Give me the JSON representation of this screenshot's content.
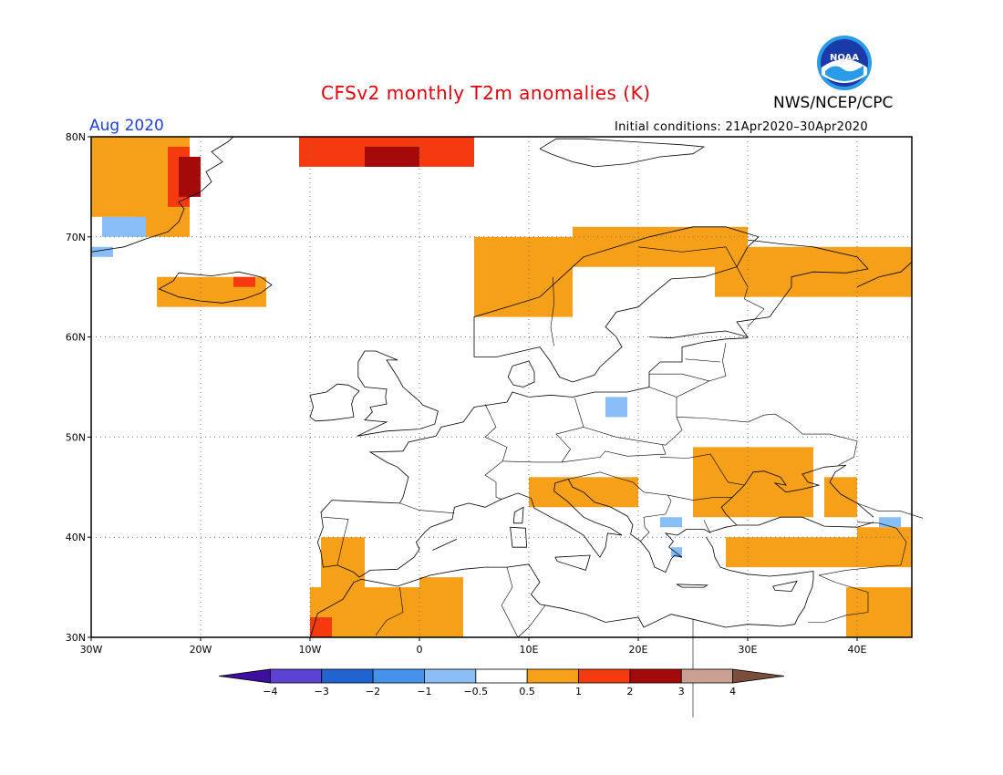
{
  "header": {
    "title": "CFSv2 monthly T2m anomalies (K)",
    "agency": "NWS/NCEP/CPC",
    "month": "Aug 2020",
    "initial_conditions": "Initial conditions: 21Apr2020–30Apr2020",
    "logo_text": "NOAA"
  },
  "map": {
    "lon_range": [
      -30,
      45
    ],
    "lat_range": [
      30,
      80
    ],
    "lat_ticks": [
      {
        "value": 80,
        "label": "80N"
      },
      {
        "value": 70,
        "label": "70N"
      },
      {
        "value": 60,
        "label": "60N"
      },
      {
        "value": 50,
        "label": "50N"
      },
      {
        "value": 40,
        "label": "40N"
      },
      {
        "value": 30,
        "label": "30N"
      }
    ],
    "lon_ticks": [
      {
        "value": -30,
        "label": "30W"
      },
      {
        "value": -20,
        "label": "20W"
      },
      {
        "value": -10,
        "label": "10W"
      },
      {
        "value": 0,
        "label": "0"
      },
      {
        "value": 10,
        "label": "10E"
      },
      {
        "value": 20,
        "label": "20E"
      },
      {
        "value": 30,
        "label": "30E"
      },
      {
        "value": 40,
        "label": "40E"
      }
    ],
    "gridlines": "dotted",
    "anomaly_regions": [
      {
        "category": "0.5-1",
        "lon": [
          -30,
          -25
        ],
        "lat": [
          72,
          80
        ]
      },
      {
        "category": "0.5-1",
        "lon": [
          -26,
          -21
        ],
        "lat": [
          70,
          80
        ]
      },
      {
        "category": "1-2",
        "lon": [
          -23,
          -21
        ],
        "lat": [
          73,
          79
        ]
      },
      {
        "category": "2-3",
        "lon": [
          -22,
          -20
        ],
        "lat": [
          74,
          78
        ]
      },
      {
        "category": "-1--0.5",
        "lon": [
          -29,
          -25
        ],
        "lat": [
          70,
          72
        ]
      },
      {
        "category": "-1--0.5",
        "lon": [
          -30,
          -28
        ],
        "lat": [
          68,
          69
        ]
      },
      {
        "category": "0.5-1",
        "lon": [
          -24,
          -14
        ],
        "lat": [
          63,
          66
        ]
      },
      {
        "category": "1-2",
        "lon": [
          -17,
          -15
        ],
        "lat": [
          65,
          66
        ]
      },
      {
        "category": "1-2",
        "lon": [
          -11,
          5
        ],
        "lat": [
          77,
          80
        ]
      },
      {
        "category": "2-3",
        "lon": [
          -5,
          0
        ],
        "lat": [
          77,
          79
        ]
      },
      {
        "category": "0.5-1",
        "lon": [
          5,
          14
        ],
        "lat": [
          62,
          70
        ]
      },
      {
        "category": "0.5-1",
        "lon": [
          14,
          30
        ],
        "lat": [
          67,
          71
        ]
      },
      {
        "category": "0.5-1",
        "lon": [
          27,
          45
        ],
        "lat": [
          64,
          69
        ]
      },
      {
        "category": "0.5-1",
        "lon": [
          10,
          20
        ],
        "lat": [
          43,
          46
        ]
      },
      {
        "category": "0.5-1",
        "lon": [
          25,
          36
        ],
        "lat": [
          42,
          49
        ]
      },
      {
        "category": "0.5-1",
        "lon": [
          37,
          40
        ],
        "lat": [
          42,
          46
        ]
      },
      {
        "category": "0.5-1",
        "lon": [
          -9,
          -5
        ],
        "lat": [
          34,
          40
        ]
      },
      {
        "category": "0.5-1",
        "lon": [
          -10,
          0
        ],
        "lat": [
          30,
          35
        ]
      },
      {
        "category": "0.5-1",
        "lon": [
          0,
          4
        ],
        "lat": [
          30,
          36
        ]
      },
      {
        "category": "1-2",
        "lon": [
          -10,
          -8
        ],
        "lat": [
          30,
          32
        ]
      },
      {
        "category": "0.5-1",
        "lon": [
          28,
          40
        ],
        "lat": [
          37,
          40
        ]
      },
      {
        "category": "0.5-1",
        "lon": [
          40,
          45
        ],
        "lat": [
          37,
          41
        ]
      },
      {
        "category": "0.5-1",
        "lon": [
          39,
          45
        ],
        "lat": [
          30,
          35
        ]
      },
      {
        "category": "-1--0.5",
        "lon": [
          17,
          19
        ],
        "lat": [
          52,
          54
        ]
      },
      {
        "category": "-1--0.5",
        "lon": [
          22,
          24
        ],
        "lat": [
          41,
          42
        ]
      },
      {
        "category": "-1--0.5",
        "lon": [
          42,
          44
        ],
        "lat": [
          41,
          42
        ]
      },
      {
        "category": "-1--0.5",
        "lon": [
          23,
          24
        ],
        "lat": [
          38,
          39
        ]
      }
    ]
  },
  "colorbar": {
    "colors": [
      "#3d0f9e",
      "#5d40d4",
      "#1f64d0",
      "#4592ea",
      "#89bdf5",
      "#ffffff",
      "#f5a018",
      "#f63a10",
      "#a40a0a",
      "#c9a091",
      "#7a4d3c"
    ],
    "category_keys": [
      "<-4",
      "-4--3",
      "-3--2",
      "-2--1",
      "-1--0.5",
      "-0.5-0.5",
      "0.5-1",
      "1-2",
      "2-3",
      "3-4",
      ">4"
    ],
    "labels": [
      "−4",
      "−3",
      "−2",
      "−1",
      "−0.5",
      "0.5",
      "1",
      "2",
      "3",
      "4"
    ]
  }
}
